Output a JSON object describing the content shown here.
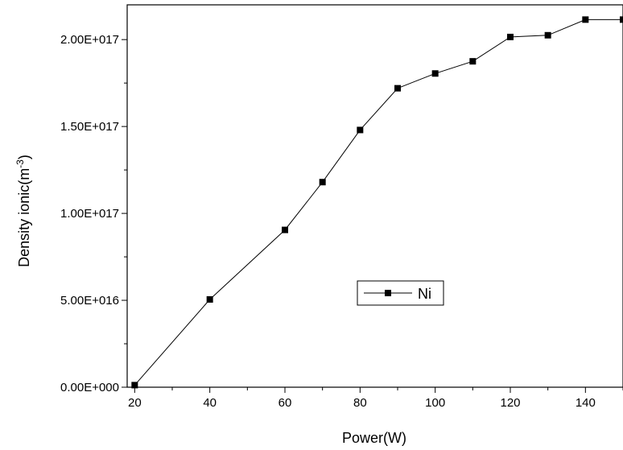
{
  "chart_data": {
    "type": "line",
    "xlabel": "Power(W)",
    "ylabel_main": "Density ionic(m",
    "ylabel_sup": "-3",
    "ylabel_close": ")",
    "xlim": [
      18,
      150
    ],
    "ylim": [
      0,
      2.2e+17
    ],
    "x_ticks": [
      20,
      40,
      60,
      80,
      100,
      120,
      140
    ],
    "x_tick_labels": [
      "20",
      "40",
      "60",
      "80",
      "100",
      "120",
      "140"
    ],
    "y_ticks": [
      0,
      5e+16,
      1e+17,
      1.5e+17,
      2e+17
    ],
    "y_tick_labels": [
      "0.00E+000",
      "5.00E+016",
      "1.00E+017",
      "1.50E+017",
      "2.00E+017"
    ],
    "legend_position": "center-right",
    "series": [
      {
        "name": "Ni",
        "marker": "square",
        "color": "#000000",
        "x": [
          20,
          40,
          60,
          70,
          80,
          90,
          100,
          110,
          120,
          130,
          140,
          150
        ],
        "y": [
          1200000000000000.0,
          5.05e+16,
          9.05e+16,
          1.18e+17,
          1.48e+17,
          1.72e+17,
          1.805e+17,
          1.875e+17,
          2.015e+17,
          2.025e+17,
          2.115e+17,
          2.115e+17
        ]
      }
    ]
  }
}
